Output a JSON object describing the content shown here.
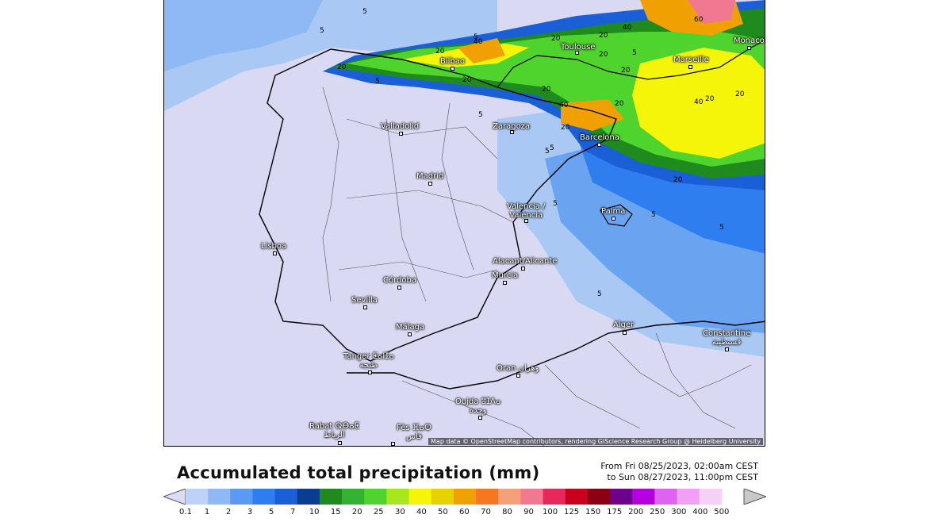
{
  "map": {
    "attribution": "Map data © OpenStreetMap contributors, rendering GIScience Research Group @ Heidelberg University",
    "cities": [
      {
        "name": "Toulouse"
      },
      {
        "name": "Monaco"
      },
      {
        "name": "Marseille"
      },
      {
        "name": "Bilbao"
      },
      {
        "name": "Valladolid"
      },
      {
        "name": "Zaragoza"
      },
      {
        "name": "Barcelona"
      },
      {
        "name": "Madrid"
      },
      {
        "name": "Valencia /\nValència"
      },
      {
        "name": "Palma"
      },
      {
        "name": "Lisboa"
      },
      {
        "name": "Alacant/Alicante"
      },
      {
        "name": "Murcia"
      },
      {
        "name": "Córdoba"
      },
      {
        "name": "Sevilla"
      },
      {
        "name": "Málaga"
      },
      {
        "name": "Alger"
      },
      {
        "name": "Constantine\nقسنطينة"
      },
      {
        "name": "Tanger ⵟⴰⵏⵊⴰ\nطنجة"
      },
      {
        "name": "Oran وهران"
      },
      {
        "name": "Oujda ⵓⵊⴷⴰ\nوجدة"
      },
      {
        "name": "Rabat ⵕⴱⴰⵟ\nالرباط"
      },
      {
        "name": "Fès ⴼⴰⵙ\nفاس"
      }
    ],
    "contour_labels": [
      "5",
      "5",
      "20",
      "40",
      "20",
      "20",
      "20",
      "40",
      "60",
      "20",
      "20",
      "5",
      "5",
      "20",
      "20",
      "40",
      "20",
      "5",
      "5",
      "20",
      "5",
      "5",
      "5",
      "20",
      "40",
      "20",
      "20",
      "5",
      "5",
      "5"
    ]
  },
  "legend": {
    "title": "Accumulated total precipitation (mm)",
    "from": "From Fri 08/25/2023, 02:00am CEST",
    "to": "to Sun 08/27/2023, 11:00pm CEST",
    "ticks": [
      "0.1",
      "1",
      "2",
      "3",
      "5",
      "7",
      "10",
      "15",
      "20",
      "25",
      "30",
      "40",
      "50",
      "60",
      "70",
      "80",
      "90",
      "100",
      "125",
      "150",
      "175",
      "200",
      "250",
      "300",
      "400",
      "500"
    ],
    "colors": [
      "#dcdcf5",
      "#bcd2f7",
      "#8fb9f5",
      "#5a9af0",
      "#2f7ef0",
      "#1a5fd6",
      "#0a3d91",
      "#1f8b1f",
      "#32b432",
      "#4ed42c",
      "#a8e61e",
      "#f5f50a",
      "#e6d200",
      "#f0a000",
      "#f57820",
      "#f5a078",
      "#f07890",
      "#e6285a",
      "#c8001e",
      "#8c0014",
      "#6e008c",
      "#b400dc",
      "#dc64f0",
      "#f0a0f5",
      "#f5d2f5",
      "#c8c8c8"
    ]
  }
}
